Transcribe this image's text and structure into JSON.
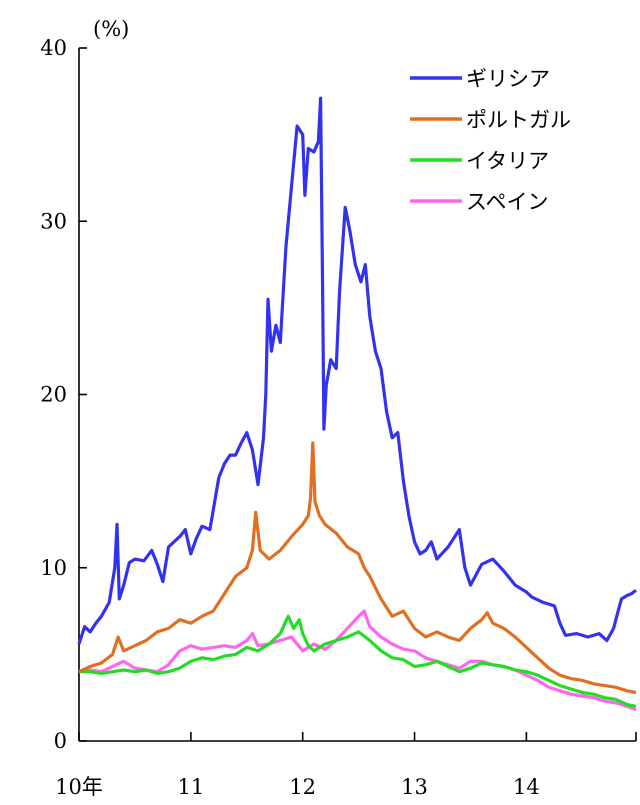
{
  "chart_data": {
    "type": "line",
    "unit_label": "(%)",
    "x_tick_labels": [
      "10年",
      "11",
      "12",
      "13",
      "14"
    ],
    "x_ticks": [
      2010,
      2011,
      2012,
      2013,
      2014
    ],
    "xlim": [
      2010.0,
      2014.98
    ],
    "ylim": [
      0,
      40
    ],
    "y_ticks": [
      0,
      10,
      20,
      30,
      40
    ],
    "grid": false,
    "legend_position": "top-right",
    "series": [
      {
        "name": "ギリシア",
        "color": "#3333ee",
        "points": [
          [
            2010.0,
            5.6
          ],
          [
            2010.05,
            6.6
          ],
          [
            2010.1,
            6.3
          ],
          [
            2010.15,
            6.8
          ],
          [
            2010.2,
            7.2
          ],
          [
            2010.27,
            8.0
          ],
          [
            2010.32,
            10.0
          ],
          [
            2010.34,
            12.5
          ],
          [
            2010.36,
            8.2
          ],
          [
            2010.4,
            9.0
          ],
          [
            2010.45,
            10.3
          ],
          [
            2010.5,
            10.5
          ],
          [
            2010.58,
            10.4
          ],
          [
            2010.65,
            11.0
          ],
          [
            2010.7,
            10.2
          ],
          [
            2010.75,
            9.2
          ],
          [
            2010.8,
            11.2
          ],
          [
            2010.9,
            11.8
          ],
          [
            2010.95,
            12.2
          ],
          [
            2011.0,
            10.8
          ],
          [
            2011.05,
            11.7
          ],
          [
            2011.1,
            12.4
          ],
          [
            2011.17,
            12.2
          ],
          [
            2011.25,
            15.2
          ],
          [
            2011.3,
            16.0
          ],
          [
            2011.35,
            16.5
          ],
          [
            2011.4,
            16.5
          ],
          [
            2011.45,
            17.2
          ],
          [
            2011.5,
            17.8
          ],
          [
            2011.55,
            16.8
          ],
          [
            2011.6,
            14.8
          ],
          [
            2011.65,
            17.5
          ],
          [
            2011.67,
            20.0
          ],
          [
            2011.69,
            25.5
          ],
          [
            2011.72,
            22.5
          ],
          [
            2011.76,
            24.0
          ],
          [
            2011.8,
            23.0
          ],
          [
            2011.85,
            28.5
          ],
          [
            2011.9,
            32.0
          ],
          [
            2011.95,
            35.5
          ],
          [
            2012.0,
            35.0
          ],
          [
            2012.02,
            31.5
          ],
          [
            2012.05,
            34.2
          ],
          [
            2012.1,
            34.0
          ],
          [
            2012.14,
            34.6
          ],
          [
            2012.16,
            37.1
          ],
          [
            2012.18,
            25.0
          ],
          [
            2012.19,
            18.0
          ],
          [
            2012.21,
            20.5
          ],
          [
            2012.25,
            22.0
          ],
          [
            2012.3,
            21.5
          ],
          [
            2012.33,
            26.0
          ],
          [
            2012.38,
            30.8
          ],
          [
            2012.42,
            29.5
          ],
          [
            2012.47,
            27.5
          ],
          [
            2012.52,
            26.5
          ],
          [
            2012.56,
            27.5
          ],
          [
            2012.6,
            24.5
          ],
          [
            2012.65,
            22.5
          ],
          [
            2012.7,
            21.5
          ],
          [
            2012.75,
            19.0
          ],
          [
            2012.8,
            17.5
          ],
          [
            2012.85,
            17.8
          ],
          [
            2012.9,
            15.0
          ],
          [
            2012.95,
            13.0
          ],
          [
            2013.0,
            11.5
          ],
          [
            2013.05,
            10.8
          ],
          [
            2013.1,
            11.0
          ],
          [
            2013.15,
            11.5
          ],
          [
            2013.2,
            10.5
          ],
          [
            2013.3,
            11.2
          ],
          [
            2013.4,
            12.2
          ],
          [
            2013.45,
            10.0
          ],
          [
            2013.5,
            9.0
          ],
          [
            2013.55,
            9.6
          ],
          [
            2013.6,
            10.2
          ],
          [
            2013.7,
            10.5
          ],
          [
            2013.8,
            9.8
          ],
          [
            2013.9,
            9.0
          ],
          [
            2014.0,
            8.6
          ],
          [
            2014.05,
            8.3
          ],
          [
            2014.15,
            8.0
          ],
          [
            2014.25,
            7.8
          ],
          [
            2014.3,
            6.8
          ],
          [
            2014.35,
            6.1
          ],
          [
            2014.45,
            6.2
          ],
          [
            2014.55,
            6.0
          ],
          [
            2014.65,
            6.2
          ],
          [
            2014.72,
            5.8
          ],
          [
            2014.78,
            6.5
          ],
          [
            2014.82,
            7.5
          ],
          [
            2014.85,
            8.2
          ],
          [
            2014.9,
            8.4
          ],
          [
            2014.94,
            8.5
          ],
          [
            2014.98,
            8.7
          ]
        ]
      },
      {
        "name": "ポルトガル",
        "color": "#e07020",
        "points": [
          [
            2010.0,
            4.0
          ],
          [
            2010.1,
            4.3
          ],
          [
            2010.2,
            4.5
          ],
          [
            2010.3,
            5.0
          ],
          [
            2010.35,
            6.0
          ],
          [
            2010.4,
            5.2
          ],
          [
            2010.5,
            5.5
          ],
          [
            2010.6,
            5.8
          ],
          [
            2010.7,
            6.3
          ],
          [
            2010.8,
            6.5
          ],
          [
            2010.9,
            7.0
          ],
          [
            2011.0,
            6.8
          ],
          [
            2011.1,
            7.2
          ],
          [
            2011.2,
            7.5
          ],
          [
            2011.3,
            8.5
          ],
          [
            2011.4,
            9.5
          ],
          [
            2011.5,
            10.0
          ],
          [
            2011.55,
            11.0
          ],
          [
            2011.58,
            13.2
          ],
          [
            2011.62,
            11.0
          ],
          [
            2011.7,
            10.5
          ],
          [
            2011.8,
            11.0
          ],
          [
            2011.9,
            11.8
          ],
          [
            2012.0,
            12.5
          ],
          [
            2012.05,
            13.0
          ],
          [
            2012.07,
            14.0
          ],
          [
            2012.09,
            17.2
          ],
          [
            2012.11,
            13.8
          ],
          [
            2012.15,
            13.0
          ],
          [
            2012.2,
            12.5
          ],
          [
            2012.3,
            12.0
          ],
          [
            2012.4,
            11.2
          ],
          [
            2012.5,
            10.8
          ],
          [
            2012.55,
            10.0
          ],
          [
            2012.6,
            9.5
          ],
          [
            2012.7,
            8.2
          ],
          [
            2012.8,
            7.2
          ],
          [
            2012.9,
            7.5
          ],
          [
            2013.0,
            6.5
          ],
          [
            2013.1,
            6.0
          ],
          [
            2013.2,
            6.3
          ],
          [
            2013.3,
            6.0
          ],
          [
            2013.4,
            5.8
          ],
          [
            2013.5,
            6.5
          ],
          [
            2013.6,
            7.0
          ],
          [
            2013.65,
            7.4
          ],
          [
            2013.7,
            6.8
          ],
          [
            2013.8,
            6.5
          ],
          [
            2013.9,
            6.0
          ],
          [
            2014.0,
            5.4
          ],
          [
            2014.1,
            4.8
          ],
          [
            2014.2,
            4.2
          ],
          [
            2014.3,
            3.8
          ],
          [
            2014.4,
            3.6
          ],
          [
            2014.5,
            3.5
          ],
          [
            2014.6,
            3.3
          ],
          [
            2014.7,
            3.2
          ],
          [
            2014.8,
            3.1
          ],
          [
            2014.9,
            2.9
          ],
          [
            2014.98,
            2.8
          ]
        ]
      },
      {
        "name": "イタリア",
        "color": "#22dd22",
        "points": [
          [
            2010.0,
            4.0
          ],
          [
            2010.1,
            4.0
          ],
          [
            2010.2,
            3.9
          ],
          [
            2010.3,
            4.0
          ],
          [
            2010.4,
            4.1
          ],
          [
            2010.5,
            4.0
          ],
          [
            2010.6,
            4.1
          ],
          [
            2010.7,
            3.9
          ],
          [
            2010.8,
            4.0
          ],
          [
            2010.9,
            4.2
          ],
          [
            2011.0,
            4.6
          ],
          [
            2011.1,
            4.8
          ],
          [
            2011.2,
            4.7
          ],
          [
            2011.3,
            4.9
          ],
          [
            2011.4,
            5.0
          ],
          [
            2011.5,
            5.4
          ],
          [
            2011.6,
            5.2
          ],
          [
            2011.7,
            5.6
          ],
          [
            2011.8,
            6.2
          ],
          [
            2011.87,
            7.2
          ],
          [
            2011.92,
            6.5
          ],
          [
            2011.97,
            7.0
          ],
          [
            2012.0,
            6.2
          ],
          [
            2012.05,
            5.5
          ],
          [
            2012.1,
            5.2
          ],
          [
            2012.2,
            5.6
          ],
          [
            2012.3,
            5.8
          ],
          [
            2012.4,
            6.0
          ],
          [
            2012.5,
            6.3
          ],
          [
            2012.6,
            5.8
          ],
          [
            2012.7,
            5.2
          ],
          [
            2012.8,
            4.8
          ],
          [
            2012.9,
            4.7
          ],
          [
            2013.0,
            4.3
          ],
          [
            2013.1,
            4.4
          ],
          [
            2013.2,
            4.6
          ],
          [
            2013.3,
            4.3
          ],
          [
            2013.4,
            4.0
          ],
          [
            2013.5,
            4.2
          ],
          [
            2013.6,
            4.5
          ],
          [
            2013.7,
            4.4
          ],
          [
            2013.8,
            4.3
          ],
          [
            2013.9,
            4.1
          ],
          [
            2014.0,
            4.0
          ],
          [
            2014.1,
            3.8
          ],
          [
            2014.2,
            3.5
          ],
          [
            2014.3,
            3.2
          ],
          [
            2014.4,
            3.0
          ],
          [
            2014.5,
            2.8
          ],
          [
            2014.6,
            2.7
          ],
          [
            2014.7,
            2.5
          ],
          [
            2014.8,
            2.4
          ],
          [
            2014.9,
            2.1
          ],
          [
            2014.98,
            2.0
          ]
        ]
      },
      {
        "name": "スペイン",
        "color": "#ff66ee",
        "points": [
          [
            2010.0,
            4.0
          ],
          [
            2010.1,
            4.1
          ],
          [
            2010.2,
            4.0
          ],
          [
            2010.3,
            4.3
          ],
          [
            2010.4,
            4.6
          ],
          [
            2010.5,
            4.2
          ],
          [
            2010.6,
            4.1
          ],
          [
            2010.7,
            4.0
          ],
          [
            2010.8,
            4.4
          ],
          [
            2010.9,
            5.2
          ],
          [
            2011.0,
            5.5
          ],
          [
            2011.1,
            5.3
          ],
          [
            2011.2,
            5.4
          ],
          [
            2011.3,
            5.5
          ],
          [
            2011.4,
            5.4
          ],
          [
            2011.5,
            5.8
          ],
          [
            2011.55,
            6.2
          ],
          [
            2011.6,
            5.5
          ],
          [
            2011.7,
            5.6
          ],
          [
            2011.8,
            5.8
          ],
          [
            2011.9,
            6.0
          ],
          [
            2012.0,
            5.2
          ],
          [
            2012.1,
            5.6
          ],
          [
            2012.2,
            5.3
          ],
          [
            2012.3,
            5.8
          ],
          [
            2012.4,
            6.5
          ],
          [
            2012.5,
            7.2
          ],
          [
            2012.55,
            7.5
          ],
          [
            2012.6,
            6.6
          ],
          [
            2012.7,
            6.0
          ],
          [
            2012.8,
            5.6
          ],
          [
            2012.9,
            5.3
          ],
          [
            2013.0,
            5.2
          ],
          [
            2013.1,
            4.8
          ],
          [
            2013.2,
            4.6
          ],
          [
            2013.3,
            4.4
          ],
          [
            2013.4,
            4.2
          ],
          [
            2013.5,
            4.6
          ],
          [
            2013.6,
            4.6
          ],
          [
            2013.7,
            4.4
          ],
          [
            2013.8,
            4.3
          ],
          [
            2013.9,
            4.1
          ],
          [
            2014.0,
            3.8
          ],
          [
            2014.1,
            3.5
          ],
          [
            2014.2,
            3.1
          ],
          [
            2014.3,
            2.9
          ],
          [
            2014.4,
            2.7
          ],
          [
            2014.5,
            2.6
          ],
          [
            2014.6,
            2.5
          ],
          [
            2014.7,
            2.3
          ],
          [
            2014.8,
            2.2
          ],
          [
            2014.9,
            2.0
          ],
          [
            2014.98,
            1.8
          ]
        ]
      }
    ]
  }
}
